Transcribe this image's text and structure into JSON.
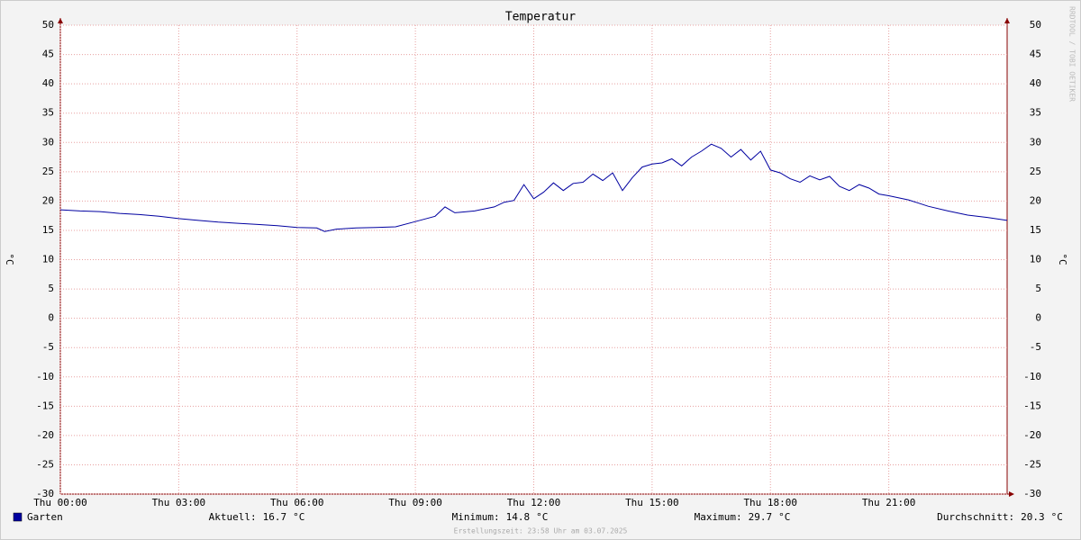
{
  "chart_data": {
    "type": "line",
    "title": "Temperatur",
    "y_label": "°C",
    "watermark": "RRDTOOL / TOBI OETIKER",
    "x": [
      0,
      0.5,
      1,
      1.5,
      2,
      2.5,
      3,
      3.5,
      4,
      4.5,
      5,
      5.5,
      6,
      6.5,
      6.7,
      7,
      7.5,
      8,
      8.5,
      9,
      9.5,
      9.75,
      10,
      10.5,
      11,
      11.25,
      11.5,
      11.75,
      12,
      12.25,
      12.5,
      12.75,
      13,
      13.25,
      13.5,
      13.75,
      14,
      14.25,
      14.5,
      14.75,
      15,
      15.25,
      15.5,
      15.75,
      16,
      16.25,
      16.5,
      16.75,
      17,
      17.25,
      17.5,
      17.75,
      18,
      18.25,
      18.5,
      18.75,
      19,
      19.25,
      19.5,
      19.75,
      20,
      20.25,
      20.5,
      20.75,
      21,
      21.5,
      22,
      22.5,
      23,
      23.5,
      24
    ],
    "series": [
      {
        "name": "Garten",
        "color": "#0000a0",
        "values": [
          18.5,
          18.3,
          18.2,
          17.9,
          17.7,
          17.4,
          17.0,
          16.7,
          16.4,
          16.2,
          16.0,
          15.8,
          15.5,
          15.4,
          14.8,
          15.2,
          15.4,
          15.5,
          15.6,
          16.5,
          17.4,
          19.0,
          18.0,
          18.3,
          19.0,
          19.8,
          20.1,
          22.8,
          20.4,
          21.5,
          23.1,
          21.8,
          23.0,
          23.2,
          24.6,
          23.5,
          24.8,
          21.8,
          24.0,
          25.8,
          26.3,
          26.5,
          27.2,
          26.0,
          27.5,
          28.5,
          29.7,
          29.0,
          27.5,
          28.8,
          27.0,
          28.5,
          25.3,
          24.8,
          23.8,
          23.2,
          24.3,
          23.6,
          24.2,
          22.5,
          21.8,
          22.8,
          22.2,
          21.2,
          20.9,
          20.2,
          19.1,
          18.3,
          17.6,
          17.2,
          16.7
        ]
      }
    ],
    "xlim": [
      0,
      24
    ],
    "xticks": [
      {
        "value": 0,
        "label": "Thu 00:00"
      },
      {
        "value": 3,
        "label": "Thu 03:00"
      },
      {
        "value": 6,
        "label": "Thu 06:00"
      },
      {
        "value": 9,
        "label": "Thu 09:00"
      },
      {
        "value": 12,
        "label": "Thu 12:00"
      },
      {
        "value": 15,
        "label": "Thu 15:00"
      },
      {
        "value": 18,
        "label": "Thu 18:00"
      },
      {
        "value": 21,
        "label": "Thu 21:00"
      }
    ],
    "ylim": [
      -30,
      50
    ],
    "yticks": [
      -30,
      -25,
      -20,
      -15,
      -10,
      -5,
      0,
      5,
      10,
      15,
      20,
      25,
      30,
      35,
      40,
      45,
      50
    ],
    "grid": true,
    "stats": [
      {
        "label": "Aktuell:",
        "value": 16.7,
        "unit": "°C"
      },
      {
        "label": "Minimum:",
        "value": 14.8,
        "unit": "°C"
      },
      {
        "label": "Maximum:",
        "value": 29.7,
        "unit": "°C"
      },
      {
        "label": "Durchschnitt:",
        "value": 20.3,
        "unit": "°C"
      }
    ],
    "footer": "Erstellungszeit: 23:58 Uhr am 03.07.2025"
  }
}
